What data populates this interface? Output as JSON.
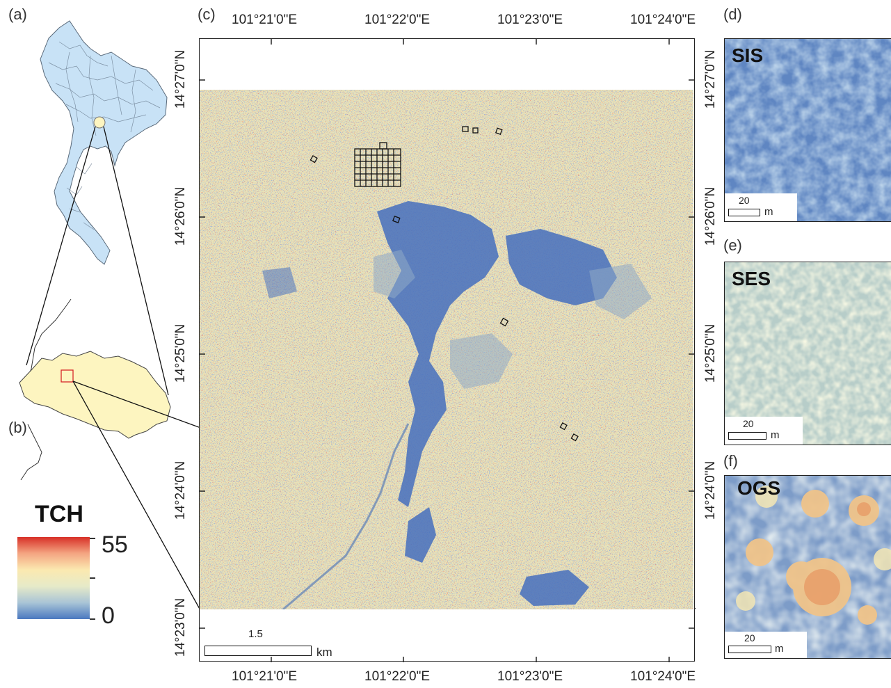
{
  "panels": {
    "a": "(a)",
    "b": "(b)",
    "c": "(c)",
    "d": "(d)",
    "e": "(e)",
    "f": "(f)"
  },
  "main_map": {
    "lon_labels": [
      "101°21'0\"E",
      "101°22'0\"E",
      "101°23'0\"E",
      "101°24'0\"E"
    ],
    "lat_labels": [
      "14°27'0\"N",
      "14°26'0\"N",
      "14°25'0\"N",
      "14°24'0\"N",
      "14°23'0\"N"
    ],
    "scalebar": {
      "value": "1.5",
      "unit": "km"
    }
  },
  "legend": {
    "title": "TCH",
    "max": "55",
    "min": "0",
    "colors": [
      "#d73027",
      "#f4a582",
      "#fbe9b0",
      "#e6eac8",
      "#a9c4d6",
      "#4a78c0"
    ]
  },
  "insets": [
    {
      "title": "SIS",
      "scale_value": "20",
      "scale_unit": "m"
    },
    {
      "title": "SES",
      "scale_value": "20",
      "scale_unit": "m"
    },
    {
      "title": "OGS",
      "scale_value": "20",
      "scale_unit": "m"
    }
  ],
  "colors": {
    "country_fill": "#c8e2f6",
    "province_fill": "#fdf5c0",
    "locator_box": "#d62728",
    "water_blue": "#4a72be"
  }
}
